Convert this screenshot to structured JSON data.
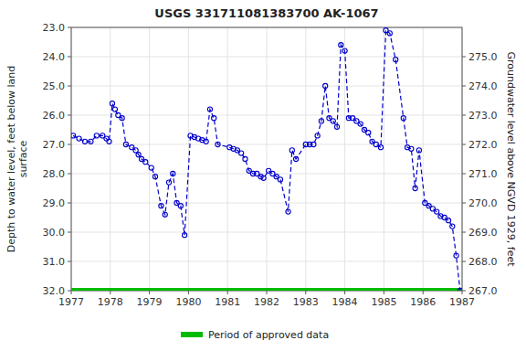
{
  "chart_data": {
    "type": "line",
    "title": "USGS 331711081383700 AK-1067",
    "y_label": "Depth to water level, feet below land\nsurface",
    "y2_label": "Groundwater level above NGVD 1929, feet",
    "xlim": [
      1977.0,
      1987.0
    ],
    "xticks": [
      1977,
      1978,
      1979,
      1980,
      1981,
      1982,
      1983,
      1984,
      1985,
      1986,
      1987
    ],
    "ylim": [
      32.0,
      23.0
    ],
    "yticks": [
      {
        "value": 23.0,
        "label": "23.0"
      },
      {
        "value": 24.0,
        "label": "24.0"
      },
      {
        "value": 25.0,
        "label": "25.0"
      },
      {
        "value": 26.0,
        "label": "26.0"
      },
      {
        "value": 27.0,
        "label": "27.0"
      },
      {
        "value": 28.0,
        "label": "28.0"
      },
      {
        "value": 29.0,
        "label": "29.0"
      },
      {
        "value": 30.0,
        "label": "30.0"
      },
      {
        "value": 31.0,
        "label": "31.0"
      },
      {
        "value": 32.0,
        "label": "32.0"
      }
    ],
    "y2lim": [
      267.0,
      276.0
    ],
    "y2ticks": [
      {
        "value": 267.0,
        "label": "267.0"
      },
      {
        "value": 268.0,
        "label": "268.0"
      },
      {
        "value": 269.0,
        "label": "269.0"
      },
      {
        "value": 270.0,
        "label": "270.0"
      },
      {
        "value": 271.0,
        "label": "271.0"
      },
      {
        "value": 272.0,
        "label": "272.0"
      },
      {
        "value": 273.0,
        "label": "273.0"
      },
      {
        "value": 274.0,
        "label": "274.0"
      },
      {
        "value": 275.0,
        "label": "275.0"
      }
    ],
    "grid": true,
    "legend": "bottom",
    "series": [
      {
        "color": "#0000cc",
        "marker": "circle",
        "line_style": "dashed",
        "x": [
          1977.05,
          1977.2,
          1977.35,
          1977.5,
          1977.65,
          1977.8,
          1977.9,
          1977.97,
          1978.05,
          1978.12,
          1978.2,
          1978.3,
          1978.4,
          1978.55,
          1978.65,
          1978.72,
          1978.8,
          1978.9,
          1979.05,
          1979.15,
          1979.3,
          1979.4,
          1979.5,
          1979.6,
          1979.7,
          1979.8,
          1979.9,
          1980.05,
          1980.15,
          1980.25,
          1980.35,
          1980.45,
          1980.55,
          1980.65,
          1980.75,
          1981.05,
          1981.15,
          1981.25,
          1981.35,
          1981.45,
          1981.55,
          1981.65,
          1981.75,
          1981.85,
          1981.92,
          1982.05,
          1982.15,
          1982.25,
          1982.35,
          1982.55,
          1982.65,
          1982.75,
          1983.0,
          1983.1,
          1983.2,
          1983.3,
          1983.4,
          1983.5,
          1983.6,
          1983.7,
          1983.8,
          1983.9,
          1984.0,
          1984.1,
          1984.2,
          1984.3,
          1984.4,
          1984.5,
          1984.6,
          1984.7,
          1984.8,
          1984.92,
          1985.05,
          1985.15,
          1985.3,
          1985.5,
          1985.6,
          1985.7,
          1985.8,
          1985.9,
          1986.05,
          1986.15,
          1986.25,
          1986.35,
          1986.45,
          1986.55,
          1986.65,
          1986.75,
          1986.85,
          1986.95
        ],
        "values": [
          26.7,
          26.8,
          26.9,
          26.9,
          26.7,
          26.7,
          26.8,
          26.9,
          25.6,
          25.8,
          26.0,
          26.1,
          27.0,
          27.1,
          27.2,
          27.35,
          27.5,
          27.6,
          27.8,
          28.1,
          29.1,
          29.4,
          28.3,
          28.0,
          29.0,
          29.1,
          30.1,
          26.7,
          26.75,
          26.8,
          26.85,
          26.9,
          25.8,
          26.1,
          27.0,
          27.1,
          27.15,
          27.2,
          27.3,
          27.5,
          27.9,
          28.0,
          28.0,
          28.1,
          28.15,
          27.9,
          28.0,
          28.1,
          28.2,
          29.3,
          27.2,
          27.5,
          27.0,
          27.0,
          27.0,
          26.7,
          26.2,
          25.0,
          26.1,
          26.2,
          26.4,
          23.6,
          23.8,
          26.1,
          26.1,
          26.2,
          26.3,
          26.5,
          26.6,
          26.9,
          27.0,
          27.1,
          23.1,
          23.2,
          24.1,
          26.1,
          27.1,
          27.15,
          28.5,
          27.2,
          29.0,
          29.1,
          29.2,
          29.3,
          29.45,
          29.5,
          29.6,
          29.8,
          30.8,
          32.0
        ]
      },
      {
        "name": "Period of approved data",
        "color": "#00bb00",
        "line_style": "solid",
        "x": [
          1977.0,
          1987.0
        ],
        "values": [
          32.0,
          32.0
        ]
      }
    ]
  }
}
